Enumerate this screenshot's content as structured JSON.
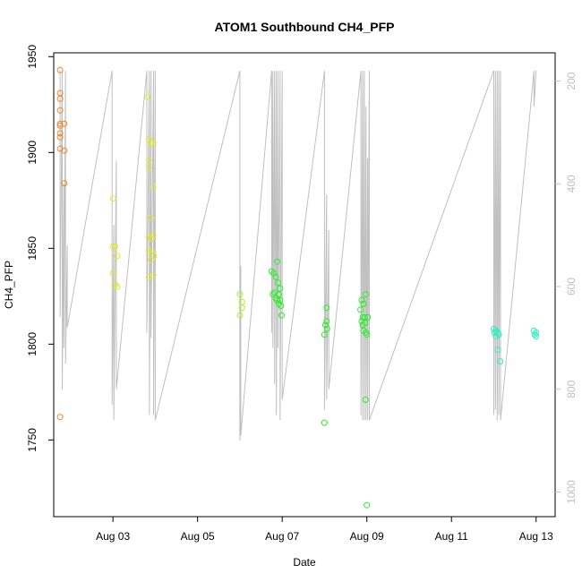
{
  "chart_data": {
    "type": "scatter",
    "title": "ATOM1 Southbound CH4_PFP",
    "xlabel": "Date",
    "ylabel": "CH4_PFP",
    "x_ticks": [
      {
        "day": 3,
        "label": "Aug 03"
      },
      {
        "day": 5,
        "label": "Aug 05"
      },
      {
        "day": 7,
        "label": "Aug 07"
      },
      {
        "day": 9,
        "label": "Aug 09"
      },
      {
        "day": 11,
        "label": "Aug 11"
      },
      {
        "day": 13,
        "label": "Aug 13"
      }
    ],
    "xlim": [
      1.6,
      13.45
    ],
    "ylim": [
      1710,
      1952
    ],
    "y_ticks": [
      1750,
      1800,
      1850,
      1900,
      1950
    ],
    "y2_label": "",
    "y2lim": [
      1048,
      145
    ],
    "y2_ticks": [
      200,
      400,
      600,
      800,
      1000
    ],
    "grid": false,
    "legend": "none",
    "colors": {
      "series_orange": "#e8882a",
      "series_yellow": "#e2e82a",
      "series_yellowgreen": "#a8f028",
      "series_green": "#28ee28",
      "series_cyan": "#28eec4",
      "altitude_line": "#bfbfbf",
      "axis": "#000000"
    },
    "series": [
      {
        "color": "#e8882a",
        "points": [
          [
            1.75,
            1943
          ],
          [
            1.75,
            1931
          ],
          [
            1.75,
            1928
          ],
          [
            1.75,
            1922
          ],
          [
            1.75,
            1915
          ],
          [
            1.75,
            1914
          ],
          [
            1.75,
            1910
          ],
          [
            1.75,
            1908
          ],
          [
            1.75,
            1902
          ],
          [
            1.85,
            1915
          ],
          [
            1.85,
            1901
          ],
          [
            1.85,
            1884
          ],
          [
            1.75,
            1762
          ]
        ]
      },
      {
        "color": "#e2e82a",
        "points": [
          [
            3.0,
            1876
          ],
          [
            3.0,
            1851
          ],
          [
            3.05,
            1851
          ],
          [
            3.1,
            1846
          ],
          [
            3.0,
            1837
          ],
          [
            3.05,
            1831
          ],
          [
            3.1,
            1830
          ],
          [
            3.82,
            1929
          ],
          [
            3.85,
            1907
          ],
          [
            3.9,
            1905
          ],
          [
            3.95,
            1905
          ],
          [
            3.85,
            1896
          ],
          [
            3.85,
            1892
          ],
          [
            3.95,
            1882
          ],
          [
            3.9,
            1866
          ],
          [
            3.95,
            1857
          ],
          [
            3.85,
            1856
          ],
          [
            3.9,
            1855
          ],
          [
            3.85,
            1849
          ],
          [
            3.92,
            1848
          ],
          [
            3.97,
            1846
          ],
          [
            3.9,
            1844
          ],
          [
            3.95,
            1836
          ],
          [
            3.85,
            1835
          ]
        ]
      },
      {
        "color": "#a8f028",
        "points": [
          [
            6.0,
            1826
          ],
          [
            6.05,
            1822
          ],
          [
            6.05,
            1819
          ],
          [
            6.0,
            1815
          ]
        ]
      },
      {
        "color": "#28ee28",
        "points": [
          [
            6.75,
            1838
          ],
          [
            6.8,
            1837
          ],
          [
            6.88,
            1843
          ],
          [
            6.85,
            1835
          ],
          [
            6.9,
            1832
          ],
          [
            6.95,
            1829
          ],
          [
            6.82,
            1827
          ],
          [
            6.78,
            1826
          ],
          [
            6.92,
            1826
          ],
          [
            6.85,
            1824
          ],
          [
            6.88,
            1823
          ],
          [
            6.95,
            1823
          ],
          [
            6.92,
            1821
          ],
          [
            6.97,
            1820
          ],
          [
            6.99,
            1815
          ],
          [
            8.05,
            1819
          ],
          [
            8.05,
            1812
          ],
          [
            8.02,
            1810
          ],
          [
            8.06,
            1808
          ],
          [
            8.0,
            1805
          ],
          [
            8.0,
            1759
          ],
          [
            8.88,
            1823
          ],
          [
            8.92,
            1821
          ],
          [
            8.97,
            1826
          ],
          [
            8.85,
            1818
          ],
          [
            8.9,
            1814
          ],
          [
            8.95,
            1814
          ],
          [
            9.02,
            1814
          ],
          [
            8.88,
            1812
          ],
          [
            8.96,
            1811
          ],
          [
            8.9,
            1810
          ],
          [
            8.92,
            1807
          ],
          [
            8.98,
            1806
          ],
          [
            9.0,
            1805
          ],
          [
            8.97,
            1771
          ],
          [
            9.0,
            1716
          ]
        ]
      },
      {
        "color": "#28eec4",
        "points": [
          [
            12.0,
            1808
          ],
          [
            12.05,
            1807
          ],
          [
            12.02,
            1806
          ],
          [
            12.1,
            1806
          ],
          [
            12.05,
            1804
          ],
          [
            12.12,
            1805
          ],
          [
            12.1,
            1797
          ],
          [
            12.15,
            1791
          ],
          [
            12.95,
            1807
          ],
          [
            13.0,
            1806
          ],
          [
            12.97,
            1805
          ],
          [
            13.0,
            1804
          ]
        ]
      }
    ],
    "altitude": {
      "note": "",
      "x": [
        1.75,
        1.75,
        1.8,
        1.8,
        1.84,
        1.84,
        1.88,
        1.88,
        1.92,
        1.92,
        2.98,
        2.98,
        3.02,
        3.02,
        3.08,
        3.08,
        3.8,
        3.8,
        3.86,
        3.86,
        3.9,
        3.9,
        3.96,
        3.96,
        4.0,
        4.0,
        6.0,
        6.0,
        6.02,
        6.02,
        6.75,
        6.75,
        6.78,
        6.78,
        6.82,
        6.82,
        6.86,
        6.86,
        6.9,
        6.9,
        6.95,
        6.95,
        7.0,
        7.0,
        8.0,
        8.0,
        8.05,
        8.05,
        8.1,
        8.1,
        8.86,
        8.86,
        8.9,
        8.9,
        8.94,
        8.94,
        8.98,
        8.98,
        9.02,
        9.02,
        9.06,
        9.06,
        12.0,
        12.0,
        12.04,
        12.04,
        12.08,
        12.08,
        12.12,
        12.12,
        12.16,
        12.16,
        12.95,
        12.95,
        13.0
      ],
      "y": [
        180,
        660,
        180,
        800,
        400,
        720,
        180,
        750,
        520,
        680,
        180,
        830,
        480,
        860,
        355,
        800,
        180,
        690,
        180,
        850,
        180,
        700,
        180,
        850,
        180,
        860,
        180,
        900,
        560,
        890,
        180,
        690,
        180,
        720,
        180,
        790,
        180,
        850,
        180,
        720,
        180,
        860,
        180,
        820,
        180,
        840,
        420,
        820,
        490,
        800,
        180,
        850,
        180,
        860,
        180,
        860,
        250,
        860,
        350,
        860,
        180,
        860,
        180,
        850,
        180,
        840,
        180,
        860,
        180,
        850,
        180,
        860,
        180,
        250,
        180
      ]
    }
  }
}
